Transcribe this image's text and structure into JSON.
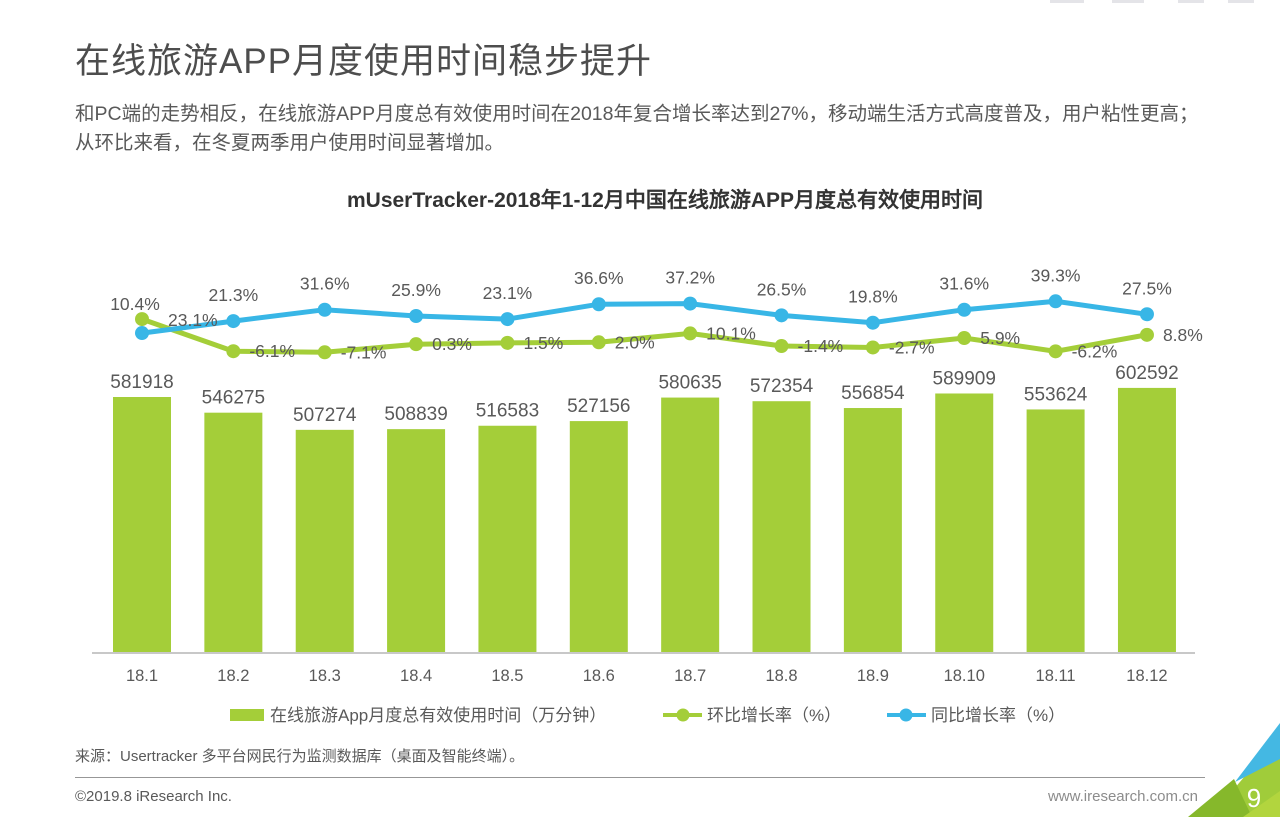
{
  "page": {
    "heading": "在线旅游APP月度使用时间稳步提升",
    "description": "和PC端的走势相反，在线旅游APP月度总有效使用时间在2018年复合增长率达到27%，移动端生活方式高度普及，用户粘性更高；从环比来看，在冬夏两季用户使用时间显著增加。",
    "source_note": "来源：Usertracker 多平台网民行为监测数据库（桌面及智能终端）。",
    "footer": {
      "copyright": "©2019.8 iResearch Inc.",
      "website": "www.iresearch.com.cn",
      "page_number": "9"
    }
  },
  "chart_data": {
    "type": "bar",
    "title": "mUserTracker-2018年1-12月中国在线旅游APP月度总有效使用时间",
    "categories": [
      "18.1",
      "18.2",
      "18.3",
      "18.4",
      "18.5",
      "18.6",
      "18.7",
      "18.8",
      "18.9",
      "18.10",
      "18.11",
      "18.12"
    ],
    "series": [
      {
        "name": "在线旅游App月度总有效使用时间（万分钟）",
        "type": "bar",
        "color": "#a4ce39",
        "values": [
          581918,
          546275,
          507274,
          508839,
          516583,
          527156,
          580635,
          572354,
          556854,
          589909,
          553624,
          602592
        ]
      },
      {
        "name": "环比增长率（%）",
        "type": "line",
        "color": "#a4ce39",
        "unit": "%",
        "values": [
          10.4,
          -6.1,
          -7.1,
          0.3,
          1.5,
          2.0,
          10.1,
          -1.4,
          -2.7,
          5.9,
          -6.2,
          8.8
        ]
      },
      {
        "name": "同比增长率（%）",
        "type": "line",
        "color": "#38b6e6",
        "unit": "%",
        "values": [
          23.1,
          21.3,
          31.6,
          25.9,
          23.1,
          36.6,
          37.2,
          26.5,
          19.8,
          31.6,
          39.3,
          27.5
        ]
      }
    ],
    "xlabel": "",
    "ylabel": "",
    "bar_axis_min": 0,
    "grid": false,
    "y_axis_visible": false,
    "value_labels": true,
    "legend_position": "bottom"
  },
  "colors": {
    "bar_green": "#a4ce39",
    "line_green": "#a4ce39",
    "line_blue": "#38b6e6",
    "text_gray": "#595959",
    "heading_gray": "#4d4d4d",
    "axis_gray": "#c8c8c8",
    "corner_blue": "#44b8e3",
    "corner_green_light": "#a0cc3a",
    "corner_green_dark": "#86b82b",
    "corner_green_bright": "#b2d53e"
  }
}
